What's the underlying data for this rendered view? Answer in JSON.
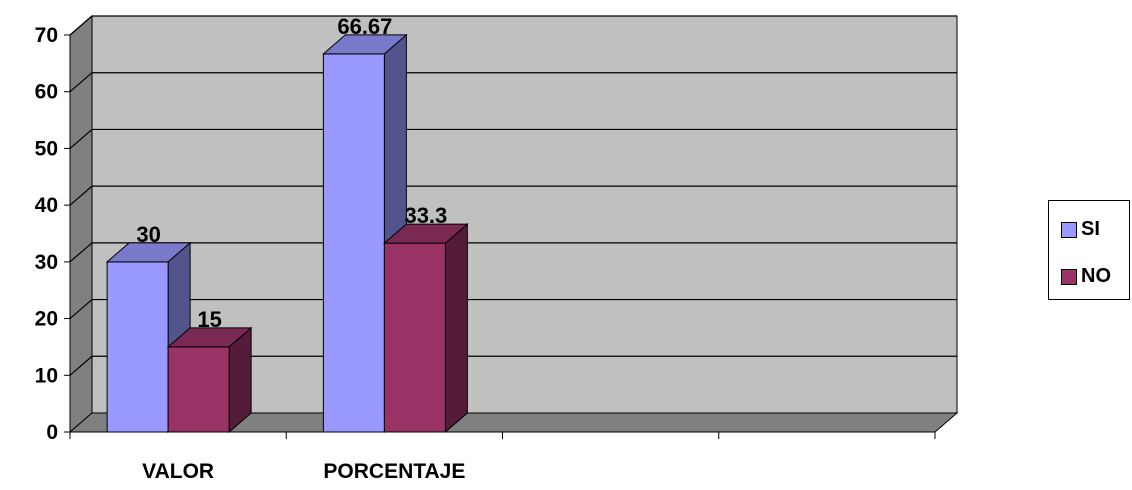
{
  "chart_data": {
    "type": "bar",
    "categories": [
      "VALOR",
      "PORCENTAJE"
    ],
    "series": [
      {
        "name": "SI",
        "values": [
          30,
          66.67
        ],
        "labels": [
          "30",
          "66.67"
        ],
        "color": "#9999ff"
      },
      {
        "name": "NO",
        "values": [
          15,
          33.3
        ],
        "labels": [
          "15",
          "33.3"
        ],
        "color": "#993366"
      }
    ],
    "ylim": [
      0,
      70
    ],
    "yticks": [
      "0",
      "10",
      "20",
      "30",
      "40",
      "50",
      "60",
      "70"
    ],
    "grid": true,
    "legend_position": "right",
    "background": "#c0c0c0"
  }
}
